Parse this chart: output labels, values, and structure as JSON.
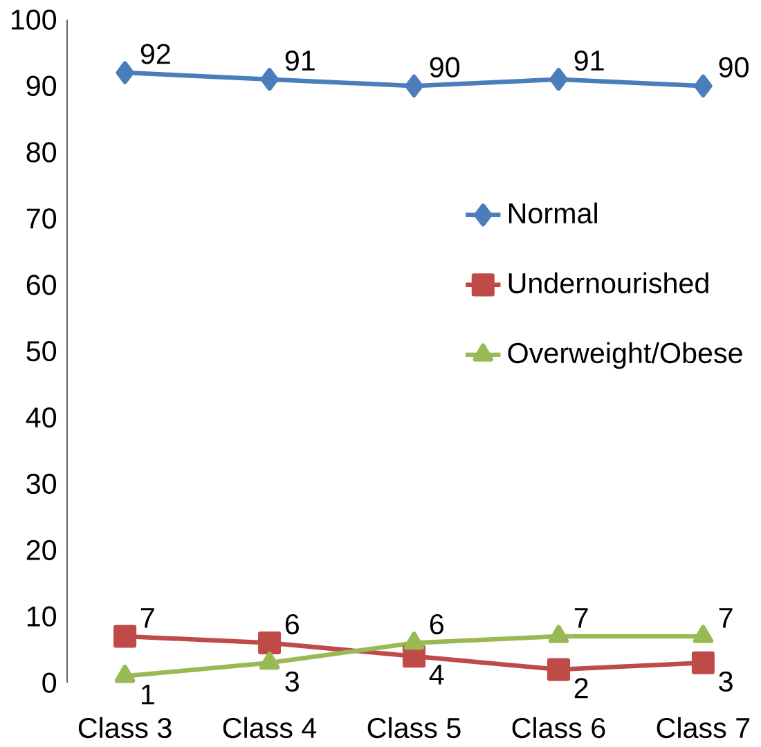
{
  "chart_data": {
    "type": "line",
    "categories": [
      "Class 3",
      "Class 4",
      "Class 5",
      "Class 6",
      "Class 7"
    ],
    "series": [
      {
        "name": "Normal",
        "color": "#4a7ebb",
        "marker": "diamond",
        "values": [
          92,
          91,
          90,
          91,
          90
        ]
      },
      {
        "name": "Undernourished",
        "color": "#be4b48",
        "marker": "square",
        "values": [
          7,
          6,
          4,
          2,
          3
        ]
      },
      {
        "name": "Overweight/Obese",
        "color": "#98b954",
        "marker": "triangle",
        "values": [
          1,
          3,
          6,
          7,
          7
        ]
      }
    ],
    "ylim": [
      0,
      100
    ],
    "yticks": [
      0,
      10,
      20,
      30,
      40,
      50,
      60,
      70,
      80,
      90,
      100
    ],
    "data_labels": true,
    "legend": "right",
    "grid": false
  }
}
